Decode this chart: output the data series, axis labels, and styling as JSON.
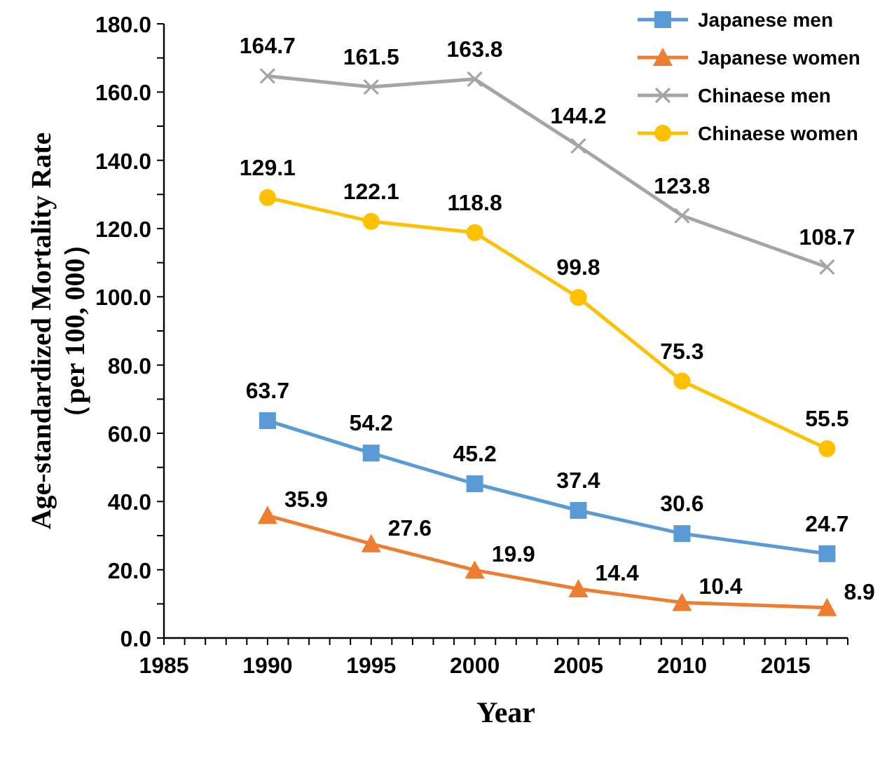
{
  "chart_data": {
    "type": "line",
    "xlabel": "Year",
    "ylabel": "Age-standardized Mortality Rate\n（per 100, 000）",
    "x": [
      1990,
      1995,
      2000,
      2005,
      2010,
      2017
    ],
    "series": [
      {
        "name": "Japanese men",
        "color": "#5b9bd5",
        "marker": "square",
        "values": [
          63.7,
          54.2,
          45.2,
          37.4,
          30.6,
          24.7
        ]
      },
      {
        "name": "Japanese women",
        "color": "#ed7d31",
        "marker": "triangle",
        "values": [
          35.9,
          27.6,
          19.9,
          14.4,
          10.4,
          8.9
        ]
      },
      {
        "name": "Chinaese men",
        "color": "#a5a5a5",
        "marker": "cross",
        "values": [
          164.7,
          161.5,
          163.8,
          144.2,
          123.8,
          108.7
        ]
      },
      {
        "name": "Chinaese women",
        "color": "#ffc000",
        "marker": "circle",
        "values": [
          129.1,
          122.1,
          118.8,
          99.8,
          75.3,
          55.5
        ]
      }
    ],
    "xlim": [
      1985,
      2018
    ],
    "xticks": [
      1985,
      1990,
      1995,
      2000,
      2005,
      2010,
      2015
    ],
    "ylim": [
      0,
      180
    ],
    "yticks": [
      {
        "value": 0,
        "label": "0.0"
      },
      {
        "value": 20,
        "label": "20.0"
      },
      {
        "value": 40,
        "label": "40.0"
      },
      {
        "value": 60,
        "label": "60.0"
      },
      {
        "value": 80,
        "label": "80.0"
      },
      {
        "value": 100,
        "label": "100.0"
      },
      {
        "value": 120,
        "label": "120.0"
      },
      {
        "value": 140,
        "label": "140.0"
      },
      {
        "value": 160,
        "label": "160.0"
      },
      {
        "value": 180,
        "label": "180.0"
      }
    ],
    "grid": false,
    "legend": "top right",
    "data_labels": true,
    "line_style": "solid"
  }
}
